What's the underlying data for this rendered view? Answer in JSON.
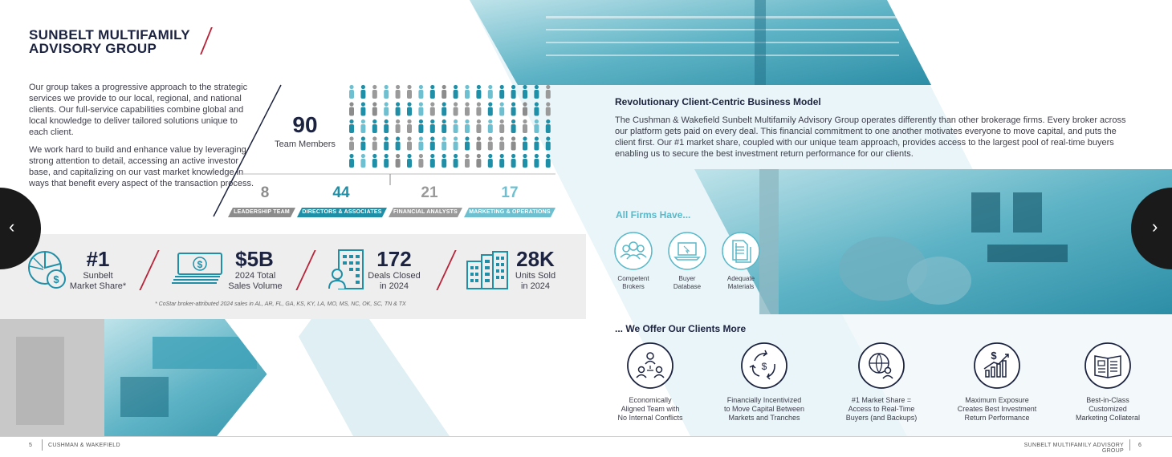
{
  "title": {
    "line1": "SUNBELT MULTIFAMILY",
    "line2": "ADVISORY GROUP"
  },
  "intro": {
    "p1": "Our group takes a progressive approach to the strategic services we provide to our local, regional, and national clients. Our full-service capabilities combine global and local knowledge to deliver tailored solutions unique to each client.",
    "p2": "We work hard to build and enhance value by leveraging strong attention to detail, accessing an active investor base, and capitalizing on our vast market knowledge in ways that benefit every aspect of the transaction process."
  },
  "team": {
    "count": "90",
    "label": "Team Members"
  },
  "departments": [
    {
      "count": "8",
      "label": "LEADERSHIP TEAM",
      "color": "#8c8c8c"
    },
    {
      "count": "44",
      "label": "DIRECTORS & ASSOCIATES",
      "color": "#1f8fa8"
    },
    {
      "count": "21",
      "label": "FINANCIAL ANALYSTS",
      "color": "#9a9a9a"
    },
    {
      "count": "17",
      "label": "MARKETING & OPERATIONS",
      "color": "#6ec0d0"
    }
  ],
  "stats": [
    {
      "value": "#1",
      "label1": "Sunbelt",
      "label2": "Market Share*",
      "icon": "pie-chart-dollar-icon"
    },
    {
      "value": "$5B",
      "label1": "2024 Total",
      "label2": "Sales Volume",
      "icon": "cash-stack-icon"
    },
    {
      "value": "172",
      "label1": "Deals Closed",
      "label2": "in 2024",
      "icon": "building-person-icon"
    },
    {
      "value": "28K",
      "label1": "Units Sold",
      "label2": "in 2024",
      "icon": "apartment-buildings-icon"
    }
  ],
  "footnote": "* CoStar broker-attributed 2024 sales in AL, AR, FL, GA, KS, KY, LA, MO, MS, NC, OK, SC, TN & TX",
  "revolutionary": {
    "heading": "Revolutionary Client-Centric Business Model",
    "body": "The Cushman & Wakefield Sunbelt Multifamily Advisory Group operates differently than other brokerage firms. Every broker across our platform gets paid on every deal. This financial commitment to one another motivates everyone to move capital, and puts the client first. Our #1 market share, coupled with our unique team approach, provides access to the largest pool of real-time buyers enabling us to secure the best investment return performance for our clients."
  },
  "all_firms": {
    "heading": "All Firms Have...",
    "items": [
      {
        "line1": "Competent",
        "line2": "Brokers",
        "icon": "people-group-icon"
      },
      {
        "line1": "Buyer",
        "line2": "Database",
        "icon": "laptop-icon"
      },
      {
        "line1": "Adequate",
        "line2": "Materials",
        "icon": "documents-icon"
      }
    ]
  },
  "we_offer": {
    "heading": "... We Offer Our Clients More",
    "items": [
      {
        "line1": "Economically",
        "line2": "Aligned Team with",
        "line3": "No Internal Conflicts",
        "icon": "team-network-icon"
      },
      {
        "line1": "Financially Incentivized",
        "line2": "to Move Capital Between",
        "line3": "Markets and Tranches",
        "icon": "recycle-arrows-icon"
      },
      {
        "line1": "#1 Market Share =",
        "line2": "Access to Real-Time",
        "line3": "Buyers (and Backups)",
        "icon": "globe-person-icon"
      },
      {
        "line1": "Maximum Exposure",
        "line2": "Creates Best Investment",
        "line3": "Return Performance",
        "icon": "growth-chart-icon"
      },
      {
        "line1": "Best-in-Class",
        "line2": "Customized",
        "line3": "Marketing Collateral",
        "icon": "brochure-icon"
      }
    ]
  },
  "footer": {
    "left_page": "5",
    "left_text": "CUSHMAN & WAKEFIELD",
    "right_text": "SUNBELT MULTIFAMILY ADVISORY GROUP",
    "right_page": "6"
  },
  "nav": {
    "prev": "‹",
    "next": "›"
  },
  "colors": {
    "navy": "#1c2340",
    "teal": "#1f8fa8",
    "light_teal": "#6ec0d0",
    "gray": "#9a9a9a",
    "accent_red": "#b8253a"
  }
}
